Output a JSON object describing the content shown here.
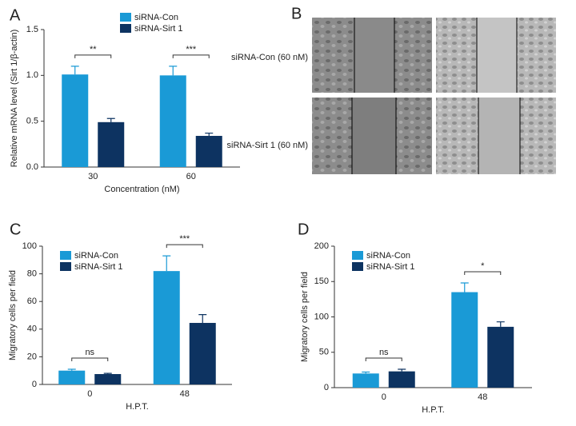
{
  "chart_data": [
    {
      "type": "bar",
      "panel": "A",
      "ylabel": "Relative mRNA level (Sirt 1/β-actin)",
      "xlabel": "Concentration (nM)",
      "categories": [
        "30",
        "60"
      ],
      "series": [
        {
          "name": "siRNA-Con",
          "color": "#1a9ad6",
          "values": [
            1.01,
            1.0
          ],
          "errors": [
            0.09,
            0.1
          ]
        },
        {
          "name": "siRNA-Sirt 1",
          "color": "#0d3361",
          "values": [
            0.49,
            0.34
          ],
          "errors": [
            0.04,
            0.03
          ]
        }
      ],
      "annotations": [
        "**",
        "***"
      ],
      "ylim": [
        0,
        1.5
      ],
      "yticks": [
        {
          "value": 0,
          "label": "0.0"
        },
        0.5,
        {
          "value": 1,
          "label": "1.0"
        },
        1.5
      ],
      "legend": "top-center"
    },
    {
      "type": "bar",
      "panel": "C",
      "ylabel": "Migratory cells per field",
      "xlabel": "H.P.T.",
      "categories": [
        "0",
        "48"
      ],
      "series": [
        {
          "name": "siRNA-Con",
          "color": "#1a9ad6",
          "values": [
            10,
            82
          ],
          "errors": [
            1,
            11
          ]
        },
        {
          "name": "siRNA-Sirt 1",
          "color": "#0d3361",
          "values": [
            7.5,
            44.5
          ],
          "errors": [
            0.5,
            6
          ]
        }
      ],
      "annotations": [
        "ns",
        "***"
      ],
      "ylim": [
        0,
        100
      ],
      "yticks": [
        0,
        20,
        40,
        60,
        80,
        100
      ],
      "legend": "top-left"
    },
    {
      "type": "bar",
      "panel": "D",
      "ylabel": "Migratory cells per field",
      "xlabel": "H.P.T.",
      "categories": [
        "0",
        "48"
      ],
      "series": [
        {
          "name": "siRNA-Con",
          "color": "#1a9ad6",
          "values": [
            20,
            135
          ],
          "errors": [
            2,
            13
          ]
        },
        {
          "name": "siRNA-Sirt 1",
          "color": "#0d3361",
          "values": [
            23,
            86
          ],
          "errors": [
            3,
            7
          ]
        }
      ],
      "annotations": [
        "ns",
        "*"
      ],
      "ylim": [
        0,
        200
      ],
      "yticks": [
        0,
        50,
        100,
        150,
        200
      ],
      "legend": "top-left"
    }
  ],
  "panel_b": {
    "panel": "B",
    "rows": [
      "siRNA-Con (60 nM)",
      "siRNA-Sirt 1 (60 nM)"
    ]
  }
}
